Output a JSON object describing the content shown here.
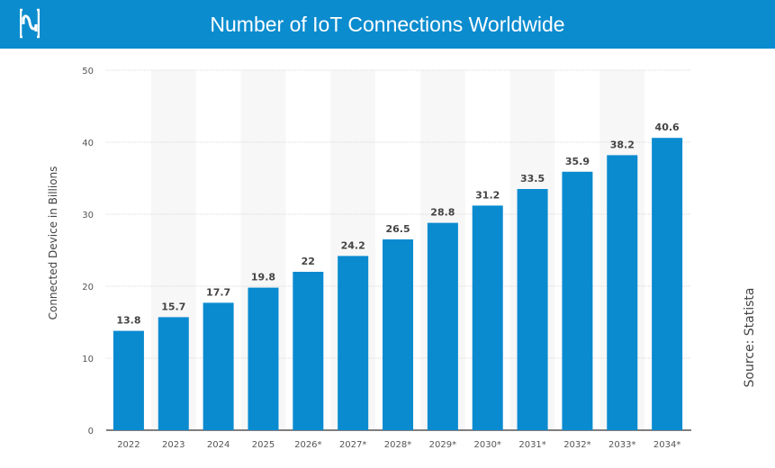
{
  "header": {
    "title": "Number of IoT Connections Worldwide",
    "logo_icon": "brand-logo-icon",
    "background": "#0b8ccf"
  },
  "source": "Source: Statista",
  "chart_data": {
    "type": "bar",
    "title": "Number of IoT Connections Worldwide",
    "xlabel": "",
    "ylabel": "Connected Device in Billions",
    "categories": [
      "2022",
      "2023",
      "2024",
      "2025",
      "2026*",
      "2027*",
      "2028*",
      "2029*",
      "2030*",
      "2031*",
      "2032*",
      "2033*",
      "2034*"
    ],
    "values": [
      13.8,
      15.7,
      17.7,
      19.8,
      22,
      24.2,
      26.5,
      28.8,
      31.2,
      33.5,
      35.9,
      38.2,
      40.6
    ],
    "value_labels": [
      "13.8",
      "15.7",
      "17.7",
      "19.8",
      "22",
      "24.2",
      "26.5",
      "28.8",
      "31.2",
      "33.5",
      "35.9",
      "38.2",
      "40.6"
    ],
    "ylim": [
      0,
      50
    ],
    "yticks": [
      "0",
      "10",
      "20",
      "30",
      "40",
      "50"
    ],
    "grid": true,
    "bar_color": "#0a8bd0"
  }
}
